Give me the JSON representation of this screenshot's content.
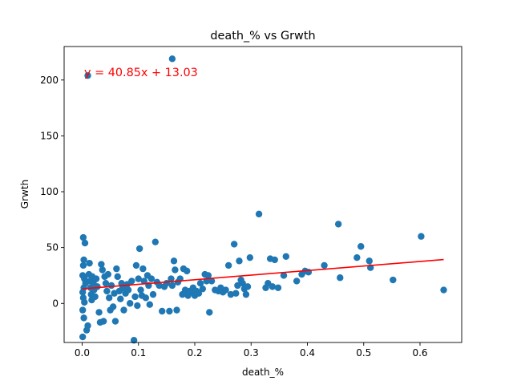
{
  "chart_data": {
    "type": "scatter",
    "title": "death_% vs Grwth",
    "xlabel": "death_%",
    "ylabel": "Grwth",
    "xlim": [
      -0.032,
      0.674
    ],
    "ylim": [
      -35.0,
      230.0
    ],
    "xticks": [
      0.0,
      0.1,
      0.2,
      0.3,
      0.4,
      0.5,
      0.6
    ],
    "xtick_labels": [
      "0.0",
      "0.1",
      "0.2",
      "0.3",
      "0.4",
      "0.5",
      "0.6"
    ],
    "yticks": [
      0,
      50,
      100,
      150,
      200
    ],
    "ytick_labels": [
      "0",
      "50",
      "100",
      "150",
      "200"
    ],
    "grid": false,
    "annotation": "y = 40.85x + 13.03",
    "fit": {
      "slope": 40.85,
      "intercept": 13.03,
      "x_range": [
        0.0,
        0.642
      ]
    },
    "colors": {
      "points": "#1f77b4",
      "fit_line": "#ff0000",
      "annotation": "#ff0000",
      "axes": "#000000"
    },
    "points": [
      [
        0.01,
        204
      ],
      [
        0.16,
        219
      ],
      [
        0.002,
        59
      ],
      [
        0.005,
        54
      ],
      [
        0.003,
        39
      ],
      [
        0.002,
        34
      ],
      [
        0.001,
        25
      ],
      [
        0.004,
        22
      ],
      [
        0.006,
        18
      ],
      [
        0.003,
        14
      ],
      [
        0.001,
        10
      ],
      [
        0.002,
        5
      ],
      [
        0.004,
        1
      ],
      [
        0.001,
        -6
      ],
      [
        0.003,
        -13
      ],
      [
        0.001,
        -30
      ],
      [
        0.008,
        -24
      ],
      [
        0.01,
        -20
      ],
      [
        0.012,
        26
      ],
      [
        0.014,
        20
      ],
      [
        0.015,
        14
      ],
      [
        0.016,
        8
      ],
      [
        0.017,
        3
      ],
      [
        0.013,
        36
      ],
      [
        0.018,
        24
      ],
      [
        0.02,
        18
      ],
      [
        0.021,
        12
      ],
      [
        0.023,
        6
      ],
      [
        0.025,
        22
      ],
      [
        0.027,
        15
      ],
      [
        0.03,
        -8
      ],
      [
        0.032,
        -17
      ],
      [
        0.034,
        35
      ],
      [
        0.036,
        30
      ],
      [
        0.038,
        -16
      ],
      [
        0.04,
        24
      ],
      [
        0.042,
        18
      ],
      [
        0.044,
        11
      ],
      [
        0.046,
        26
      ],
      [
        0.048,
        5
      ],
      [
        0.05,
        -6
      ],
      [
        0.052,
        16
      ],
      [
        0.055,
        -3
      ],
      [
        0.057,
        9
      ],
      [
        0.059,
        -16
      ],
      [
        0.061,
        31
      ],
      [
        0.063,
        24
      ],
      [
        0.066,
        11
      ],
      [
        0.068,
        4
      ],
      [
        0.07,
        18
      ],
      [
        0.072,
        14
      ],
      [
        0.074,
        -6
      ],
      [
        0.077,
        9
      ],
      [
        0.08,
        17
      ],
      [
        0.082,
        12
      ],
      [
        0.085,
        0
      ],
      [
        0.088,
        20
      ],
      [
        0.092,
        -33
      ],
      [
        0.094,
        6
      ],
      [
        0.096,
        34
      ],
      [
        0.098,
        -2
      ],
      [
        0.1,
        22
      ],
      [
        0.102,
        49
      ],
      [
        0.104,
        12
      ],
      [
        0.106,
        7
      ],
      [
        0.108,
        31
      ],
      [
        0.11,
        20
      ],
      [
        0.113,
        5
      ],
      [
        0.116,
        25
      ],
      [
        0.118,
        16
      ],
      [
        0.12,
        -1
      ],
      [
        0.123,
        22
      ],
      [
        0.126,
        8
      ],
      [
        0.13,
        55
      ],
      [
        0.133,
        19
      ],
      [
        0.137,
        16
      ],
      [
        0.142,
        -7
      ],
      [
        0.146,
        15
      ],
      [
        0.15,
        18
      ],
      [
        0.155,
        -7
      ],
      [
        0.158,
        22
      ],
      [
        0.16,
        16
      ],
      [
        0.163,
        38
      ],
      [
        0.165,
        30
      ],
      [
        0.168,
        -6
      ],
      [
        0.17,
        19
      ],
      [
        0.174,
        22
      ],
      [
        0.178,
        8
      ],
      [
        0.18,
        31
      ],
      [
        0.183,
        12
      ],
      [
        0.186,
        29
      ],
      [
        0.188,
        7
      ],
      [
        0.191,
        11
      ],
      [
        0.194,
        10
      ],
      [
        0.197,
        14
      ],
      [
        0.2,
        7
      ],
      [
        0.203,
        11
      ],
      [
        0.207,
        9
      ],
      [
        0.21,
        18
      ],
      [
        0.214,
        13
      ],
      [
        0.218,
        26
      ],
      [
        0.221,
        20
      ],
      [
        0.224,
        25
      ],
      [
        0.226,
        -8
      ],
      [
        0.23,
        20
      ],
      [
        0.236,
        12
      ],
      [
        0.242,
        11
      ],
      [
        0.246,
        14
      ],
      [
        0.25,
        10
      ],
      [
        0.255,
        12
      ],
      [
        0.26,
        34
      ],
      [
        0.264,
        8
      ],
      [
        0.27,
        53
      ],
      [
        0.273,
        9
      ],
      [
        0.276,
        16
      ],
      [
        0.279,
        38
      ],
      [
        0.282,
        21
      ],
      [
        0.285,
        18
      ],
      [
        0.288,
        13
      ],
      [
        0.291,
        8
      ],
      [
        0.294,
        15
      ],
      [
        0.298,
        41
      ],
      [
        0.314,
        80
      ],
      [
        0.326,
        14
      ],
      [
        0.33,
        18
      ],
      [
        0.334,
        40
      ],
      [
        0.338,
        15
      ],
      [
        0.342,
        39
      ],
      [
        0.348,
        14
      ],
      [
        0.358,
        25
      ],
      [
        0.362,
        42
      ],
      [
        0.381,
        20
      ],
      [
        0.39,
        26
      ],
      [
        0.396,
        29
      ],
      [
        0.402,
        28
      ],
      [
        0.43,
        34
      ],
      [
        0.455,
        71
      ],
      [
        0.458,
        23
      ],
      [
        0.488,
        41
      ],
      [
        0.495,
        51
      ],
      [
        0.51,
        38
      ],
      [
        0.512,
        32
      ],
      [
        0.552,
        21
      ],
      [
        0.602,
        60
      ],
      [
        0.642,
        12
      ]
    ]
  }
}
